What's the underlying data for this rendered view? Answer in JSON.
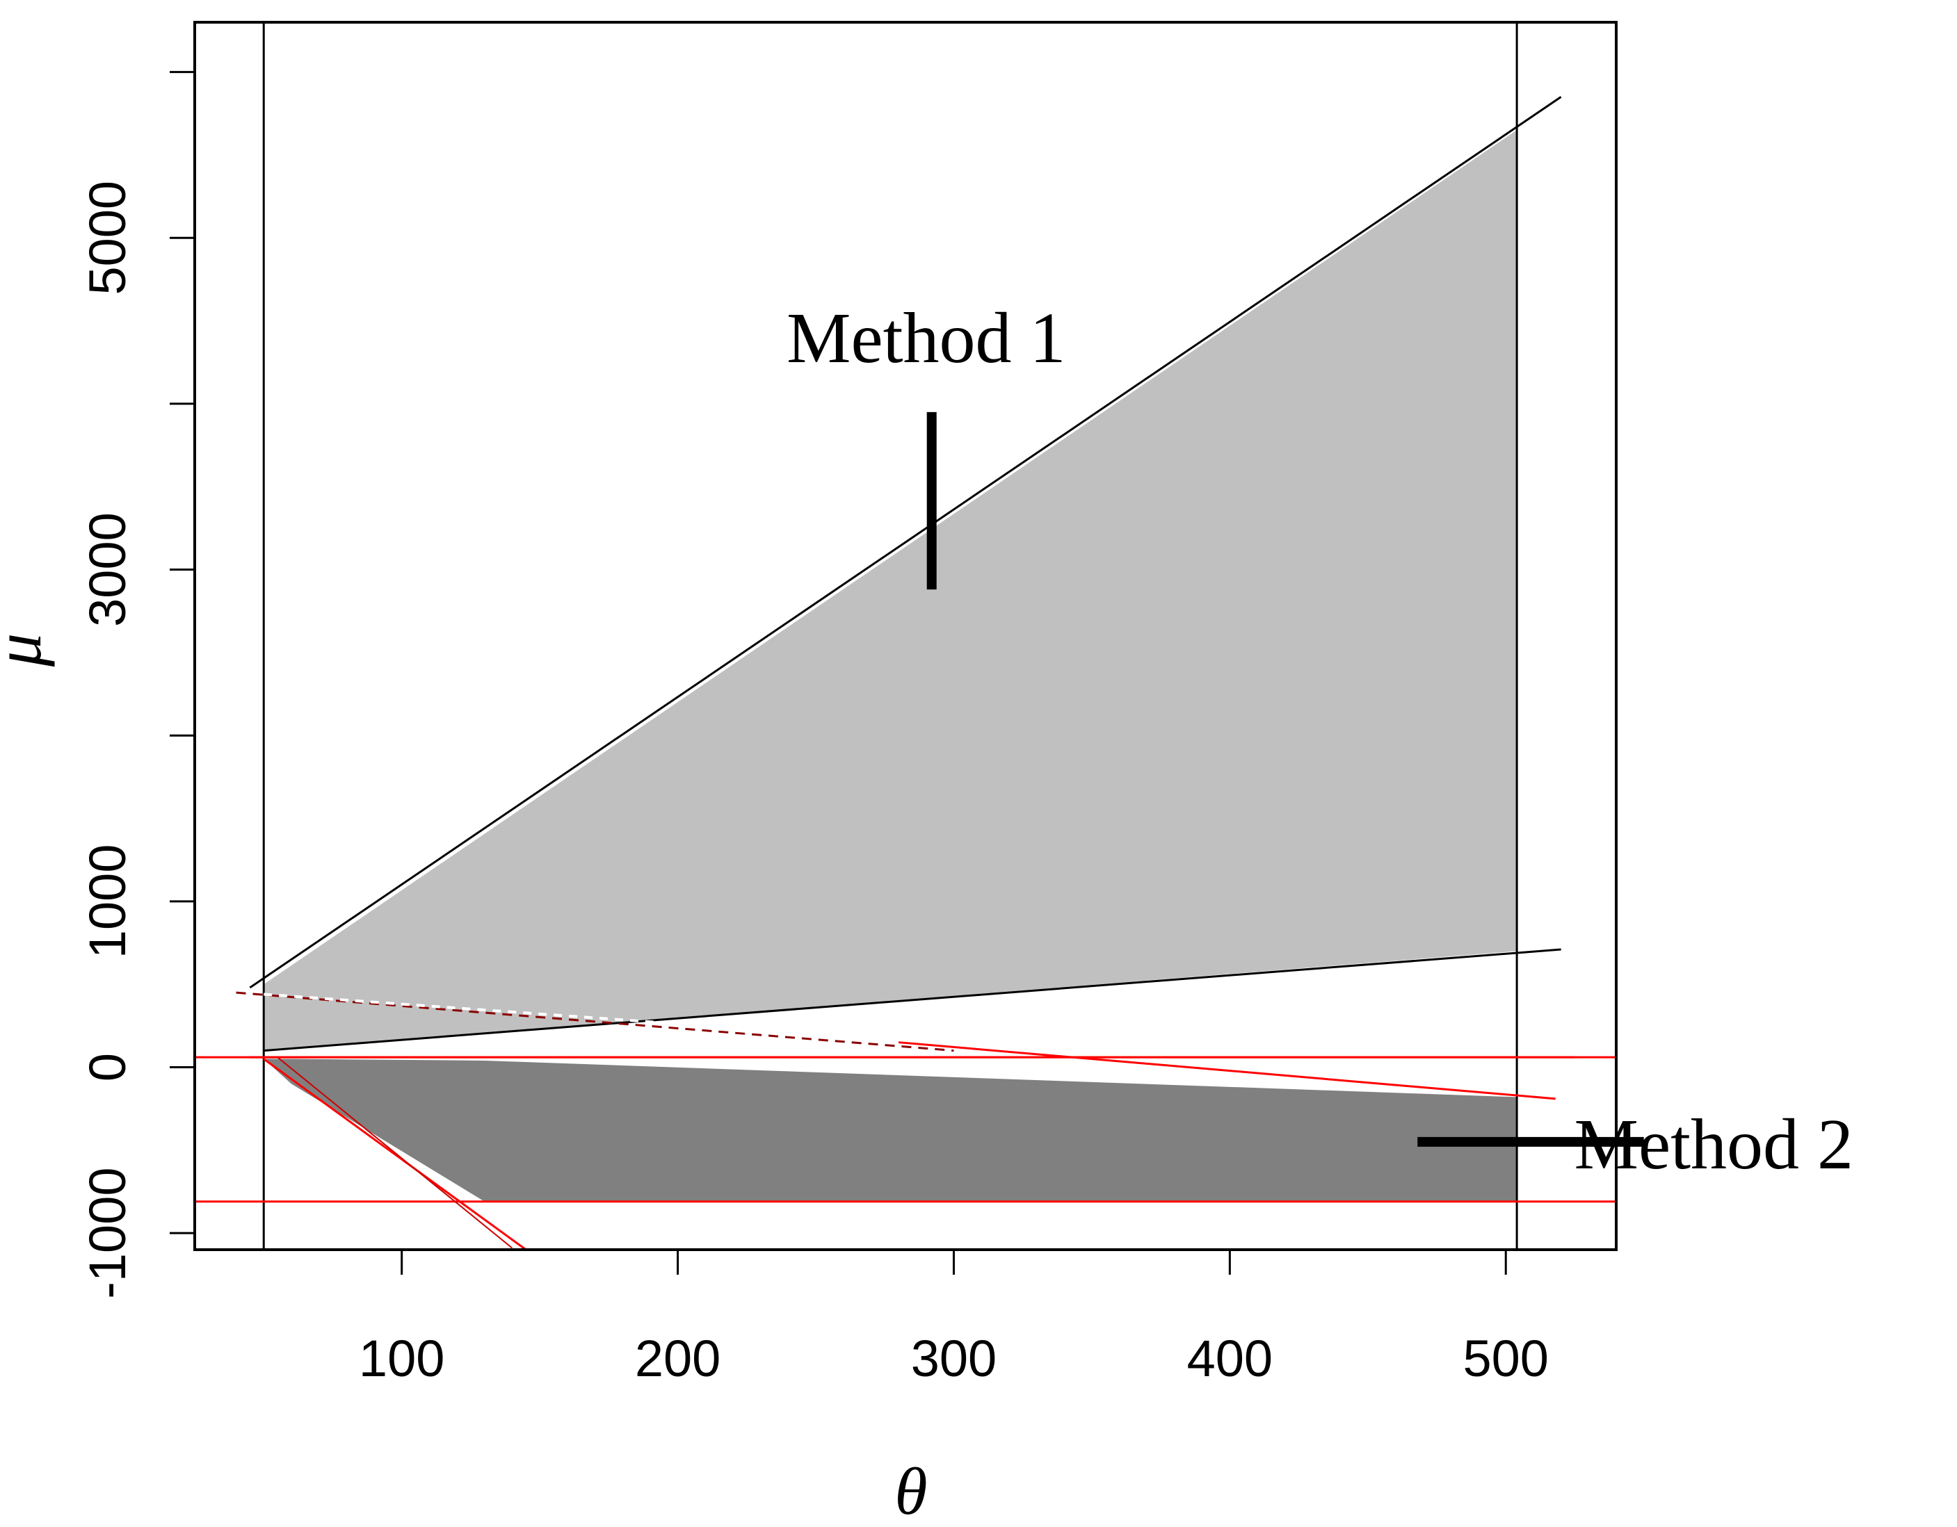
{
  "chart_data": {
    "type": "area",
    "xlabel": "θ",
    "ylabel": "μ",
    "xlim": [
      25,
      540
    ],
    "ylim": [
      -1100,
      6300
    ],
    "xticks": [
      100,
      200,
      300,
      400,
      500
    ],
    "yticks": [
      -1000,
      0,
      1000,
      2000,
      3000,
      4000,
      5000,
      6000
    ],
    "ytick_labels": [
      "-1000",
      "0",
      "1000",
      "",
      "3000",
      "",
      "5000",
      ""
    ],
    "grid": false,
    "vlines": [
      50,
      504
    ],
    "hlines": [
      60,
      -810
    ],
    "series": [
      {
        "name": "Method 1",
        "kind": "band",
        "fill": "#c0c0c0",
        "x": [
          50,
          504
        ],
        "upper": [
          500,
          5650
        ],
        "lower": [
          100,
          700
        ]
      },
      {
        "name": "Method 2",
        "kind": "band",
        "fill": "#808080",
        "x": [
          50,
          60,
          130,
          504
        ],
        "upper": [
          50,
          50,
          40,
          -180
        ],
        "lower": [
          50,
          -100,
          -810,
          -810
        ]
      }
    ],
    "lines": [
      {
        "id": "m1-upper",
        "color": "#000000",
        "width": 3,
        "x": [
          45,
          520
        ],
        "y": [
          480,
          5850
        ]
      },
      {
        "id": "m1-lower",
        "color": "#000000",
        "width": 3,
        "x": [
          50,
          520
        ],
        "y": [
          100,
          710
        ]
      },
      {
        "id": "m1-dashed-dark",
        "color": "#8a0000",
        "width": 3,
        "dash": "14 10",
        "x": [
          40,
          300
        ],
        "y": [
          450,
          100
        ]
      },
      {
        "id": "m1-dashed-white",
        "color": "#ffffff",
        "width": 4,
        "dash": "12 10",
        "x": [
          50,
          210
        ],
        "y": [
          440,
          250
        ]
      },
      {
        "id": "m2-upper",
        "color": "#ff0000",
        "width": 3,
        "x": [
          45,
          525
        ],
        "y": [
          60,
          60
        ]
      },
      {
        "id": "m2-upper-slope",
        "color": "#ff0000",
        "width": 3,
        "x": [
          280,
          518
        ],
        "y": [
          150,
          -190
        ]
      },
      {
        "id": "m2-diag",
        "color": "#ff0000",
        "width": 3,
        "x": [
          50,
          145
        ],
        "y": [
          50,
          -1100
        ]
      },
      {
        "id": "m2-diag-2",
        "color": "#cc0000",
        "width": 2,
        "x": [
          55,
          140
        ],
        "y": [
          60,
          -1090
        ]
      }
    ],
    "annotations": [
      {
        "text": "Method 1",
        "x": 290,
        "y": 4250,
        "pointer": {
          "x": 292,
          "y_from": 3950,
          "y_to": 2880
        }
      },
      {
        "text": "Method 2",
        "x": 555,
        "y": -450,
        "pointer": {
          "x_from": 550,
          "x_to": 468,
          "y": -450
        }
      }
    ]
  }
}
